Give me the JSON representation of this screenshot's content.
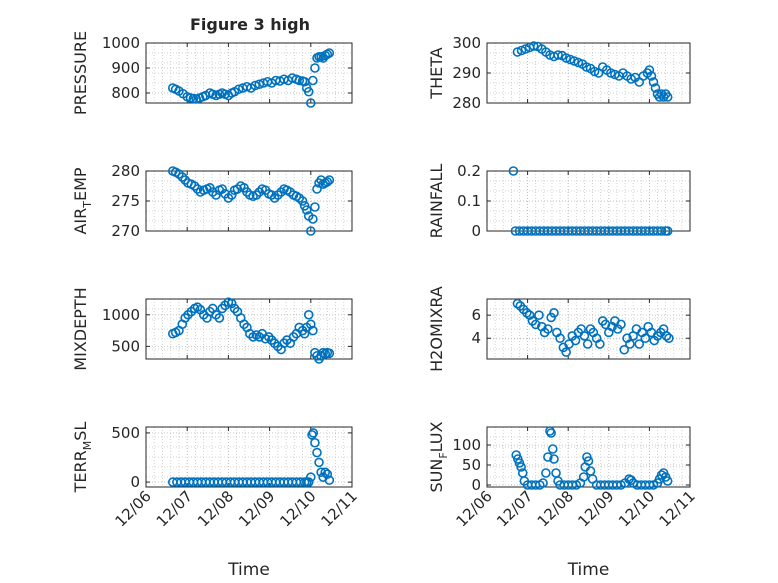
{
  "figure": {
    "title": "Figure 3 high"
  },
  "colors": {
    "marker": "#0072BD",
    "axis": "#262626",
    "grid": "#c8c8c8",
    "box": "#ffffff"
  },
  "chart_data": [
    {
      "type": "scatter",
      "ylabel_parts": [
        "PRESSURE"
      ],
      "ylim": [
        760,
        1000
      ],
      "yticks": [
        800,
        900,
        1000
      ],
      "ytick_labels": [
        "800",
        "900",
        "1000"
      ],
      "xlim": [
        0,
        5
      ],
      "xtick_labels": [
        "12/06",
        "12/07",
        "12/08",
        "12/09",
        "12/10",
        "12/11"
      ],
      "xlabel": "",
      "grid": true,
      "x": [
        0.65,
        0.72,
        0.8,
        0.9,
        1.0,
        1.08,
        1.15,
        1.22,
        1.3,
        1.38,
        1.45,
        1.55,
        1.62,
        1.7,
        1.78,
        1.85,
        1.92,
        2.0,
        2.08,
        2.15,
        2.25,
        2.35,
        2.45,
        2.55,
        2.65,
        2.75,
        2.85,
        2.95,
        3.05,
        3.15,
        3.25,
        3.35,
        3.45,
        3.55,
        3.65,
        3.72,
        3.8,
        3.85,
        3.9,
        3.95,
        4.0,
        4.05,
        4.1,
        4.15,
        4.2,
        4.25,
        4.3,
        4.35,
        4.4,
        4.45
      ],
      "y": [
        820,
        815,
        808,
        797,
        785,
        780,
        778,
        776,
        780,
        785,
        790,
        800,
        795,
        790,
        795,
        800,
        795,
        790,
        800,
        805,
        815,
        820,
        825,
        820,
        830,
        835,
        840,
        845,
        840,
        850,
        848,
        855,
        850,
        860,
        855,
        850,
        848,
        845,
        820,
        805,
        760,
        850,
        900,
        940,
        945,
        945,
        940,
        950,
        955,
        960
      ]
    },
    {
      "type": "scatter",
      "ylabel_parts": [
        "THETA"
      ],
      "ylim": [
        280,
        300
      ],
      "yticks": [
        280,
        290,
        300
      ],
      "ytick_labels": [
        "280",
        "290",
        "300"
      ],
      "xlim": [
        0,
        5
      ],
      "xtick_labels": [
        "12/06",
        "12/07",
        "12/08",
        "12/09",
        "12/10",
        "12/11"
      ],
      "xlabel": "",
      "grid": true,
      "x": [
        0.75,
        0.85,
        0.95,
        1.05,
        1.15,
        1.25,
        1.35,
        1.45,
        1.55,
        1.65,
        1.75,
        1.85,
        1.95,
        2.05,
        2.15,
        2.25,
        2.35,
        2.45,
        2.55,
        2.65,
        2.75,
        2.85,
        2.95,
        3.05,
        3.15,
        3.25,
        3.35,
        3.45,
        3.55,
        3.65,
        3.75,
        3.85,
        3.95,
        4.0,
        4.05,
        4.1,
        4.15,
        4.2,
        4.25,
        4.3,
        4.35,
        4.4,
        4.45
      ],
      "y": [
        297,
        297.5,
        298,
        298.5,
        299,
        298.8,
        298,
        297,
        296,
        295.5,
        296,
        295.8,
        295,
        294.5,
        294,
        293.5,
        293,
        292,
        291.5,
        290.5,
        290,
        292,
        291,
        290,
        289.5,
        289,
        290,
        289,
        288,
        288.5,
        287,
        289,
        290,
        291,
        289,
        287,
        285,
        283,
        282,
        283,
        282,
        283,
        282
      ]
    },
    {
      "type": "scatter",
      "ylabel_parts": [
        "AIR",
        "T",
        "EMP"
      ],
      "ylim": [
        270,
        280
      ],
      "yticks": [
        270,
        275,
        280
      ],
      "ytick_labels": [
        "270",
        "275",
        "280"
      ],
      "xlim": [
        0,
        5
      ],
      "xtick_labels": [
        "12/06",
        "12/07",
        "12/08",
        "12/09",
        "12/10",
        "12/11"
      ],
      "xlabel": "",
      "grid": true,
      "x": [
        0.65,
        0.72,
        0.8,
        0.88,
        0.95,
        1.02,
        1.1,
        1.18,
        1.25,
        1.32,
        1.4,
        1.48,
        1.55,
        1.62,
        1.7,
        1.78,
        1.85,
        1.92,
        2.0,
        2.08,
        2.15,
        2.22,
        2.3,
        2.38,
        2.45,
        2.52,
        2.6,
        2.68,
        2.75,
        2.82,
        2.9,
        2.98,
        3.05,
        3.12,
        3.2,
        3.28,
        3.35,
        3.42,
        3.5,
        3.58,
        3.65,
        3.72,
        3.8,
        3.85,
        3.9,
        3.95,
        4.0,
        4.05,
        4.1,
        4.15,
        4.2,
        4.25,
        4.3,
        4.35,
        4.4,
        4.45
      ],
      "y": [
        280,
        279.8,
        279.5,
        279,
        278.5,
        278,
        277.8,
        277.5,
        277,
        276.5,
        276.8,
        277,
        277.2,
        276.5,
        276,
        276.8,
        277,
        276.2,
        275.5,
        276,
        276.8,
        277,
        277.5,
        277.2,
        276.5,
        276,
        275.8,
        276,
        276.5,
        277,
        276.8,
        276.2,
        276,
        275.5,
        276,
        276.5,
        277,
        276.8,
        276.5,
        276,
        275.8,
        275.5,
        275,
        274.2,
        273.5,
        272.5,
        270,
        272,
        274,
        277,
        278,
        278.5,
        277.8,
        278,
        278.2,
        278.5
      ]
    },
    {
      "type": "scatter",
      "ylabel_parts": [
        "RAINFALL"
      ],
      "ylim": [
        0,
        0.2
      ],
      "yticks": [
        0,
        0.1,
        0.2
      ],
      "ytick_labels": [
        "0",
        "0.1",
        "0.2"
      ],
      "xlim": [
        0,
        5
      ],
      "xtick_labels": [
        "12/06",
        "12/07",
        "12/08",
        "12/09",
        "12/10",
        "12/11"
      ],
      "xlabel": "",
      "grid": true,
      "x": [
        0.65,
        0.7,
        0.8,
        0.9,
        1.0,
        1.1,
        1.2,
        1.3,
        1.4,
        1.5,
        1.6,
        1.7,
        1.8,
        1.9,
        2.0,
        2.1,
        2.2,
        2.3,
        2.4,
        2.5,
        2.6,
        2.7,
        2.8,
        2.9,
        3.0,
        3.1,
        3.2,
        3.3,
        3.4,
        3.5,
        3.6,
        3.7,
        3.8,
        3.9,
        4.0,
        4.1,
        4.2,
        4.3,
        4.4,
        4.45
      ],
      "y": [
        0.2,
        0,
        0,
        0,
        0,
        0,
        0,
        0,
        0,
        0,
        0,
        0,
        0,
        0,
        0,
        0,
        0,
        0,
        0,
        0,
        0,
        0,
        0,
        0,
        0,
        0,
        0,
        0,
        0,
        0,
        0,
        0,
        0,
        0,
        0,
        0,
        0,
        0,
        0,
        0
      ]
    },
    {
      "type": "scatter",
      "ylabel_parts": [
        "MIXDEPTH"
      ],
      "ylim": [
        300,
        1250
      ],
      "yticks": [
        500,
        1000
      ],
      "ytick_labels": [
        "500",
        "1000"
      ],
      "xlim": [
        0,
        5
      ],
      "xtick_labels": [
        "12/06",
        "12/07",
        "12/08",
        "12/09",
        "12/10",
        "12/11"
      ],
      "xlabel": "",
      "grid": true,
      "x": [
        0.65,
        0.72,
        0.8,
        0.88,
        0.95,
        1.02,
        1.1,
        1.18,
        1.25,
        1.32,
        1.4,
        1.48,
        1.55,
        1.62,
        1.7,
        1.78,
        1.85,
        1.92,
        2.0,
        2.08,
        2.15,
        2.22,
        2.3,
        2.38,
        2.45,
        2.52,
        2.6,
        2.68,
        2.75,
        2.82,
        2.9,
        2.98,
        3.05,
        3.12,
        3.2,
        3.28,
        3.35,
        3.42,
        3.5,
        3.58,
        3.65,
        3.72,
        3.8,
        3.85,
        3.9,
        3.95,
        4.0,
        4.05,
        4.1,
        4.15,
        4.2,
        4.25,
        4.3,
        4.35,
        4.4,
        4.45
      ],
      "y": [
        700,
        720,
        750,
        850,
        950,
        1000,
        1050,
        1100,
        1120,
        1080,
        1000,
        950,
        1050,
        1100,
        1000,
        950,
        1100,
        1150,
        1200,
        1180,
        1100,
        1050,
        950,
        850,
        800,
        700,
        650,
        680,
        650,
        700,
        620,
        650,
        600,
        550,
        500,
        450,
        550,
        600,
        550,
        650,
        700,
        800,
        750,
        700,
        800,
        1000,
        850,
        750,
        400,
        350,
        300,
        350,
        400,
        380,
        400,
        390
      ]
    },
    {
      "type": "scatter",
      "ylabel_parts": [
        "H2OMIXRA"
      ],
      "ylim": [
        2.2,
        7.4
      ],
      "yticks": [
        4,
        6
      ],
      "ytick_labels": [
        "4",
        "6"
      ],
      "xlim": [
        0,
        5
      ],
      "xtick_labels": [
        "12/06",
        "12/07",
        "12/08",
        "12/09",
        "12/10",
        "12/11"
      ],
      "xlabel": "",
      "grid": true,
      "x": [
        0.75,
        0.82,
        0.9,
        0.98,
        1.05,
        1.12,
        1.2,
        1.28,
        1.35,
        1.42,
        1.5,
        1.58,
        1.65,
        1.72,
        1.8,
        1.88,
        1.95,
        2.02,
        2.1,
        2.18,
        2.25,
        2.32,
        2.4,
        2.48,
        2.55,
        2.62,
        2.7,
        2.78,
        2.85,
        2.92,
        3.0,
        3.08,
        3.15,
        3.22,
        3.3,
        3.38,
        3.45,
        3.52,
        3.6,
        3.68,
        3.75,
        3.82,
        3.9,
        3.97,
        4.05,
        4.12,
        4.2,
        4.28,
        4.35,
        4.42,
        4.48
      ],
      "y": [
        7,
        6.8,
        6.5,
        6.2,
        6,
        5.5,
        5.2,
        6,
        5,
        4.5,
        4.8,
        5.8,
        6.2,
        4.5,
        4,
        3.2,
        2.8,
        3.5,
        4.2,
        3.8,
        4.5,
        4.8,
        4.2,
        3.5,
        4.8,
        4.5,
        4,
        3.5,
        5.5,
        5.2,
        4.5,
        5,
        5.5,
        4.8,
        5.2,
        3,
        4,
        3.5,
        4.2,
        4.8,
        3.5,
        4.5,
        4,
        5,
        4.5,
        3.8,
        4.2,
        4.5,
        4.8,
        4.2,
        4
      ]
    },
    {
      "type": "scatter",
      "ylabel_parts": [
        "TERR",
        "M",
        "SL"
      ],
      "ylim": [
        -50,
        560
      ],
      "yticks": [
        0,
        500
      ],
      "ytick_labels": [
        "0",
        "500"
      ],
      "xlim": [
        0,
        5
      ],
      "xtick_labels": [
        "12/06",
        "12/07",
        "12/08",
        "12/09",
        "12/10",
        "12/11"
      ],
      "xlabel": "Time",
      "grid": true,
      "x": [
        0.65,
        0.75,
        0.85,
        0.95,
        1.05,
        1.15,
        1.25,
        1.35,
        1.45,
        1.55,
        1.65,
        1.75,
        1.85,
        1.95,
        2.05,
        2.15,
        2.25,
        2.35,
        2.45,
        2.55,
        2.65,
        2.75,
        2.85,
        2.95,
        3.05,
        3.15,
        3.25,
        3.35,
        3.45,
        3.55,
        3.65,
        3.75,
        3.85,
        3.9,
        3.95,
        4.0,
        4.03,
        4.06,
        4.1,
        4.15,
        4.2,
        4.25,
        4.3,
        4.35,
        4.4,
        4.45
      ],
      "y": [
        0,
        0,
        0,
        0,
        0,
        0,
        0,
        0,
        0,
        0,
        0,
        0,
        0,
        0,
        0,
        0,
        0,
        0,
        0,
        0,
        0,
        0,
        0,
        0,
        0,
        0,
        0,
        0,
        0,
        0,
        0,
        0,
        0,
        0,
        0,
        50,
        480,
        500,
        400,
        300,
        200,
        100,
        50,
        100,
        80,
        20
      ]
    },
    {
      "type": "scatter",
      "ylabel_parts": [
        "SUN",
        "F",
        "LUX"
      ],
      "ylim": [
        -5,
        145
      ],
      "yticks": [
        0,
        50,
        100
      ],
      "ytick_labels": [
        "0",
        "50",
        "100"
      ],
      "xlim": [
        0,
        5
      ],
      "xtick_labels": [
        "12/06",
        "12/07",
        "12/08",
        "12/09",
        "12/10",
        "12/11"
      ],
      "xlabel": "Time",
      "grid": true,
      "x": [
        0.72,
        0.76,
        0.8,
        0.84,
        0.88,
        0.92,
        1.0,
        1.1,
        1.2,
        1.3,
        1.38,
        1.45,
        1.5,
        1.55,
        1.58,
        1.62,
        1.65,
        1.7,
        1.75,
        1.8,
        1.9,
        2.0,
        2.1,
        2.2,
        2.3,
        2.38,
        2.42,
        2.46,
        2.5,
        2.55,
        2.6,
        2.7,
        2.8,
        2.9,
        3.0,
        3.1,
        3.2,
        3.3,
        3.4,
        3.5,
        3.55,
        3.6,
        3.7,
        3.8,
        3.9,
        4.0,
        4.1,
        4.2,
        4.25,
        4.3,
        4.35,
        4.4,
        4.45
      ],
      "y": [
        75,
        65,
        55,
        45,
        30,
        10,
        0,
        0,
        0,
        0,
        5,
        30,
        70,
        135,
        130,
        90,
        65,
        30,
        10,
        0,
        0,
        0,
        0,
        0,
        5,
        20,
        45,
        70,
        60,
        35,
        15,
        0,
        0,
        0,
        0,
        0,
        0,
        0,
        5,
        15,
        12,
        5,
        0,
        0,
        0,
        0,
        0,
        5,
        15,
        25,
        30,
        20,
        10
      ]
    }
  ]
}
